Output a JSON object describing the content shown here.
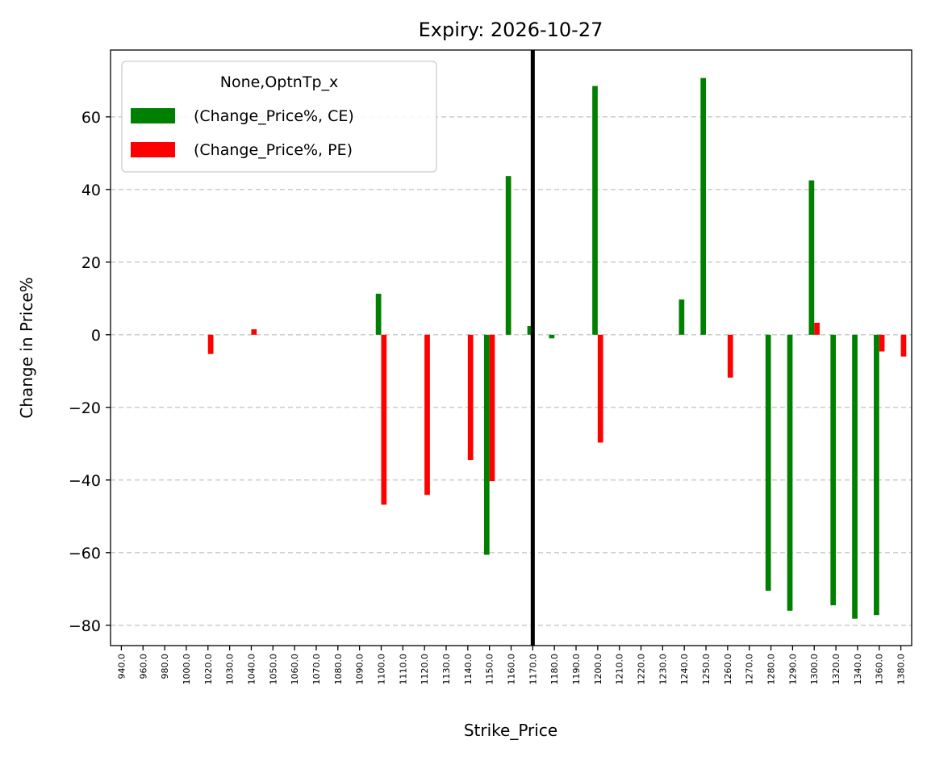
{
  "chart_data": {
    "type": "bar",
    "title": "Expiry: 2026-10-27",
    "x_label": "Strike_Price",
    "y_label": "Change in Price%",
    "legend_title": "None,OptnTp_x",
    "legend_position": "upper left",
    "grid": true,
    "vline_at": "1170.0",
    "categories": [
      "940.0",
      "960.0",
      "980.0",
      "1000.0",
      "1020.0",
      "1030.0",
      "1040.0",
      "1050.0",
      "1060.0",
      "1070.0",
      "1080.0",
      "1090.0",
      "1100.0",
      "1110.0",
      "1120.0",
      "1130.0",
      "1140.0",
      "1150.0",
      "1160.0",
      "1170.0",
      "1180.0",
      "1190.0",
      "1200.0",
      "1210.0",
      "1220.0",
      "1230.0",
      "1240.0",
      "1250.0",
      "1260.0",
      "1270.0",
      "1280.0",
      "1290.0",
      "1300.0",
      "1320.0",
      "1340.0",
      "1360.0",
      "1380.0"
    ],
    "series": [
      {
        "name": "(Change_Price%, CE)",
        "color": "#008000",
        "values": [
          null,
          null,
          null,
          null,
          null,
          null,
          null,
          null,
          null,
          null,
          null,
          null,
          11.3,
          null,
          null,
          null,
          null,
          -60.6,
          43.7,
          2.4,
          -1.0,
          null,
          68.5,
          null,
          null,
          null,
          9.7,
          70.7,
          null,
          null,
          -70.5,
          -76.0,
          42.5,
          -74.5,
          -78.2,
          -77.2,
          null
        ]
      },
      {
        "name": "(Change_Price%, PE)",
        "color": "#ff0000",
        "values": [
          null,
          null,
          null,
          null,
          -5.3,
          null,
          1.5,
          null,
          null,
          null,
          null,
          null,
          -46.8,
          null,
          -44.1,
          null,
          -34.5,
          -40.3,
          null,
          null,
          null,
          null,
          -29.7,
          null,
          null,
          null,
          null,
          null,
          -11.8,
          null,
          null,
          null,
          3.3,
          null,
          null,
          -4.6,
          -6.0
        ]
      }
    ],
    "ylim": [
      -85.6,
      78.4
    ],
    "yticks": [
      {
        "value": -80,
        "label": "−80"
      },
      {
        "value": -60,
        "label": "−60"
      },
      {
        "value": -40,
        "label": "−40"
      },
      {
        "value": -20,
        "label": "−20"
      },
      0,
      20,
      40,
      60
    ]
  }
}
